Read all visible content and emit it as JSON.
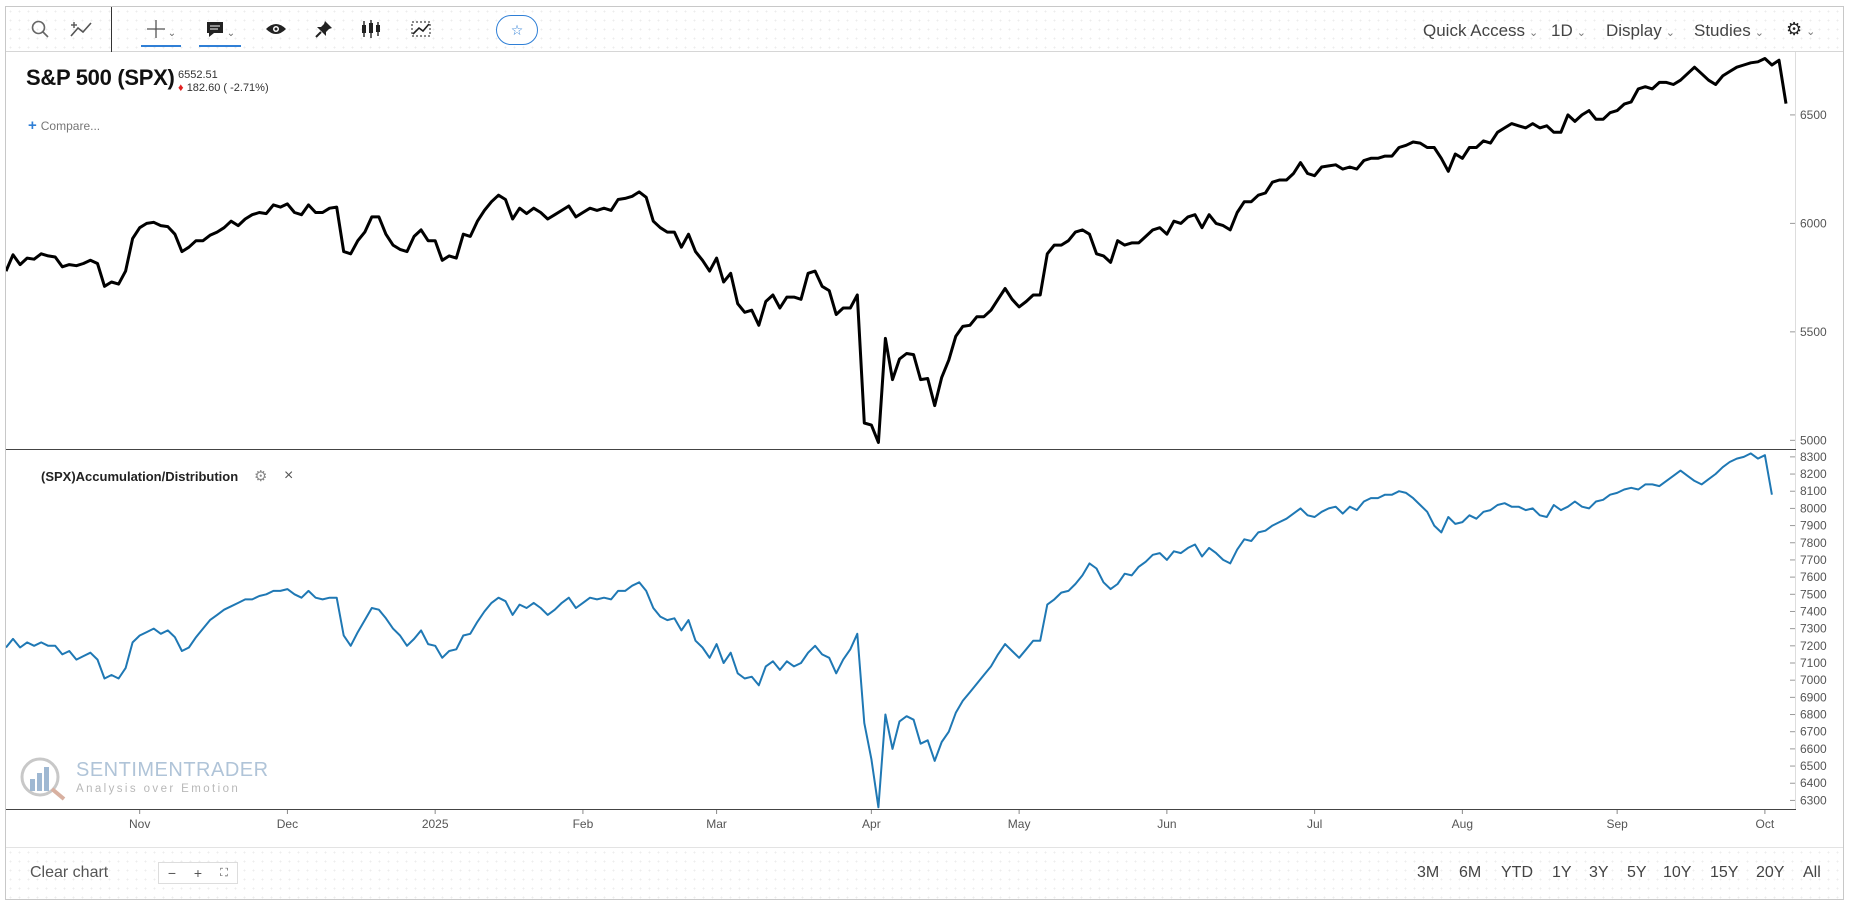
{
  "toolbar": {
    "icons": [
      "search-icon",
      "draw-line-icon",
      "crosshair-icon",
      "annotation-icon",
      "eye-icon",
      "pin-icon",
      "candlestick-icon",
      "indicator-icon",
      "star-icon"
    ],
    "menu": [
      {
        "label": "Quick Access"
      },
      {
        "label": "1D"
      },
      {
        "label": "Display"
      },
      {
        "label": "Studies"
      }
    ]
  },
  "ticker": {
    "title": "S&P 500 (SPX)",
    "price": "6552.51",
    "change": "182.60 ( -2.71%)",
    "compare_label": "Compare..."
  },
  "study": {
    "label": "(SPX)Accumulation/Distribution",
    "close_label": "×"
  },
  "watermark": {
    "name": "SENTIMENTRADER",
    "tagline": "Analysis over Emotion"
  },
  "footer": {
    "clear_label": "Clear chart",
    "zoom_out": "−",
    "zoom_in": "+",
    "fullscreen": "⛶",
    "ranges": [
      "3M",
      "6M",
      "YTD",
      "1Y",
      "3Y",
      "5Y",
      "10Y",
      "15Y",
      "20Y",
      "All"
    ]
  },
  "colors": {
    "price_line": "#000000",
    "ad_line": "#1f78b4",
    "accent": "#2f7fd6",
    "down": "#e02020"
  },
  "chart_data": [
    {
      "type": "line",
      "series": [
        {
          "values": [
            5780,
            5855,
            5810,
            5840,
            5835,
            5860,
            5850,
            5845,
            5800,
            5810,
            5805,
            5815,
            5830,
            5815,
            5710,
            5730,
            5720,
            5780,
            5930,
            5980,
            6000,
            6005,
            5990,
            5985,
            5950,
            5870,
            5890,
            5920,
            5920,
            5945,
            5960,
            5980,
            6010,
            5990,
            6020,
            6040,
            6050,
            6045,
            6085,
            6075,
            6090,
            6050,
            6040,
            6085,
            6050,
            6050,
            6070,
            6075,
            5870,
            5860,
            5920,
            5960,
            6030,
            6030,
            5950,
            5900,
            5880,
            5870,
            5940,
            5970,
            5920,
            5920,
            5830,
            5850,
            5840,
            5950,
            5940,
            6010,
            6060,
            6100,
            6130,
            6110,
            6020,
            6070,
            6045,
            6070,
            6050,
            6020,
            6040,
            6060,
            6080,
            6030,
            6050,
            6070,
            6060,
            6070,
            6060,
            6110,
            6115,
            6125,
            6145,
            6120,
            6010,
            5980,
            5960,
            5960,
            5890,
            5950,
            5870,
            5830,
            5780,
            5840,
            5730,
            5770,
            5630,
            5590,
            5600,
            5530,
            5640,
            5670,
            5610,
            5660,
            5660,
            5650,
            5770,
            5780,
            5710,
            5690,
            5580,
            5610,
            5610,
            5670,
            5080,
            5070,
            4990,
            5470,
            5280,
            5375,
            5400,
            5395,
            5280,
            5285,
            5160,
            5290,
            5370,
            5480,
            5525,
            5530,
            5570,
            5570,
            5600,
            5650,
            5700,
            5650,
            5615,
            5640,
            5670,
            5670,
            5860,
            5900,
            5900,
            5920,
            5960,
            5970,
            5950,
            5860,
            5850,
            5820,
            5920,
            5900,
            5910,
            5910,
            5940,
            5970,
            5980,
            5950,
            6010,
            6000,
            6030,
            6040,
            5980,
            6040,
            6000,
            5990,
            5970,
            6050,
            6100,
            6100,
            6130,
            6140,
            6190,
            6200,
            6200,
            6230,
            6280,
            6230,
            6220,
            6260,
            6265,
            6270,
            6250,
            6260,
            6250,
            6290,
            6300,
            6300,
            6310,
            6310,
            6350,
            6360,
            6375,
            6370,
            6350,
            6350,
            6300,
            6240,
            6320,
            6300,
            6350,
            6350,
            6380,
            6370,
            6420,
            6440,
            6460,
            6450,
            6440,
            6460,
            6440,
            6450,
            6420,
            6420,
            6500,
            6470,
            6500,
            6520,
            6480,
            6480,
            6510,
            6520,
            6550,
            6560,
            6620,
            6630,
            6620,
            6650,
            6650,
            6640,
            6660,
            6690,
            6720,
            6690,
            6660,
            6640,
            6680,
            6700,
            6720,
            6730,
            6740,
            6745,
            6760,
            6730,
            6752,
            6552
          ]
        }
      ],
      "ylim": [
        4960,
        6790
      ],
      "yticks": [
        5000,
        5500,
        6000,
        6500
      ]
    },
    {
      "type": "line",
      "series": [
        {
          "name": "(SPX)Accumulation/Distribution",
          "values": [
            7190,
            7240,
            7190,
            7220,
            7200,
            7220,
            7200,
            7200,
            7150,
            7170,
            7120,
            7140,
            7160,
            7120,
            7010,
            7030,
            7010,
            7070,
            7220,
            7260,
            7280,
            7300,
            7270,
            7290,
            7250,
            7170,
            7190,
            7250,
            7300,
            7350,
            7380,
            7410,
            7430,
            7450,
            7470,
            7470,
            7490,
            7500,
            7520,
            7520,
            7530,
            7500,
            7480,
            7520,
            7480,
            7470,
            7480,
            7480,
            7260,
            7200,
            7280,
            7350,
            7420,
            7410,
            7360,
            7300,
            7260,
            7200,
            7240,
            7290,
            7210,
            7200,
            7130,
            7170,
            7180,
            7260,
            7270,
            7340,
            7400,
            7450,
            7480,
            7460,
            7380,
            7440,
            7420,
            7450,
            7420,
            7380,
            7410,
            7450,
            7480,
            7420,
            7450,
            7480,
            7470,
            7480,
            7470,
            7520,
            7520,
            7550,
            7570,
            7520,
            7420,
            7370,
            7350,
            7360,
            7290,
            7350,
            7230,
            7190,
            7130,
            7210,
            7100,
            7160,
            7040,
            7010,
            7020,
            6970,
            7080,
            7110,
            7060,
            7110,
            7080,
            7100,
            7160,
            7200,
            7150,
            7130,
            7040,
            7120,
            7180,
            7270,
            6750,
            6540,
            6260,
            6800,
            6600,
            6760,
            6790,
            6770,
            6630,
            6650,
            6530,
            6640,
            6700,
            6810,
            6880,
            6930,
            6980,
            7030,
            7080,
            7150,
            7210,
            7170,
            7130,
            7180,
            7230,
            7230,
            7440,
            7470,
            7510,
            7520,
            7560,
            7610,
            7680,
            7650,
            7570,
            7530,
            7560,
            7620,
            7610,
            7660,
            7690,
            7730,
            7740,
            7700,
            7750,
            7740,
            7770,
            7790,
            7720,
            7770,
            7740,
            7700,
            7680,
            7760,
            7820,
            7810,
            7860,
            7870,
            7900,
            7920,
            7940,
            7970,
            8000,
            7960,
            7950,
            7980,
            8000,
            8010,
            7970,
            8010,
            7990,
            8040,
            8060,
            8060,
            8080,
            8080,
            8100,
            8090,
            8060,
            8020,
            7980,
            7900,
            7860,
            7950,
            7910,
            7920,
            7960,
            7940,
            7980,
            7990,
            8020,
            8030,
            8010,
            8010,
            7990,
            8000,
            7960,
            7950,
            8020,
            7990,
            8010,
            8040,
            8010,
            8000,
            8040,
            8050,
            8080,
            8090,
            8110,
            8120,
            8110,
            8140,
            8140,
            8130,
            8160,
            8190,
            8220,
            8190,
            8160,
            8140,
            8170,
            8200,
            8240,
            8270,
            8290,
            8300,
            8320,
            8290,
            8310,
            8080
          ]
        }
      ],
      "ylim": [
        6250,
        8340
      ],
      "yticks": [
        6300,
        6400,
        6500,
        6600,
        6700,
        6800,
        6900,
        7000,
        7100,
        7200,
        7300,
        7400,
        7500,
        7600,
        7700,
        7800,
        7900,
        8000,
        8100,
        8200,
        8300
      ]
    }
  ],
  "xaxis": {
    "ticks": [
      {
        "label": "Nov",
        "idx": 19
      },
      {
        "label": "Dec",
        "idx": 40
      },
      {
        "label": "2025",
        "idx": 61
      },
      {
        "label": "Feb",
        "idx": 82
      },
      {
        "label": "Mar",
        "idx": 101
      },
      {
        "label": "Apr",
        "idx": 123
      },
      {
        "label": "May",
        "idx": 144
      },
      {
        "label": "Jun",
        "idx": 165
      },
      {
        "label": "Jul",
        "idx": 186
      },
      {
        "label": "Aug",
        "idx": 207
      },
      {
        "label": "Sep",
        "idx": 229
      },
      {
        "label": "Oct",
        "idx": 250
      }
    ]
  }
}
